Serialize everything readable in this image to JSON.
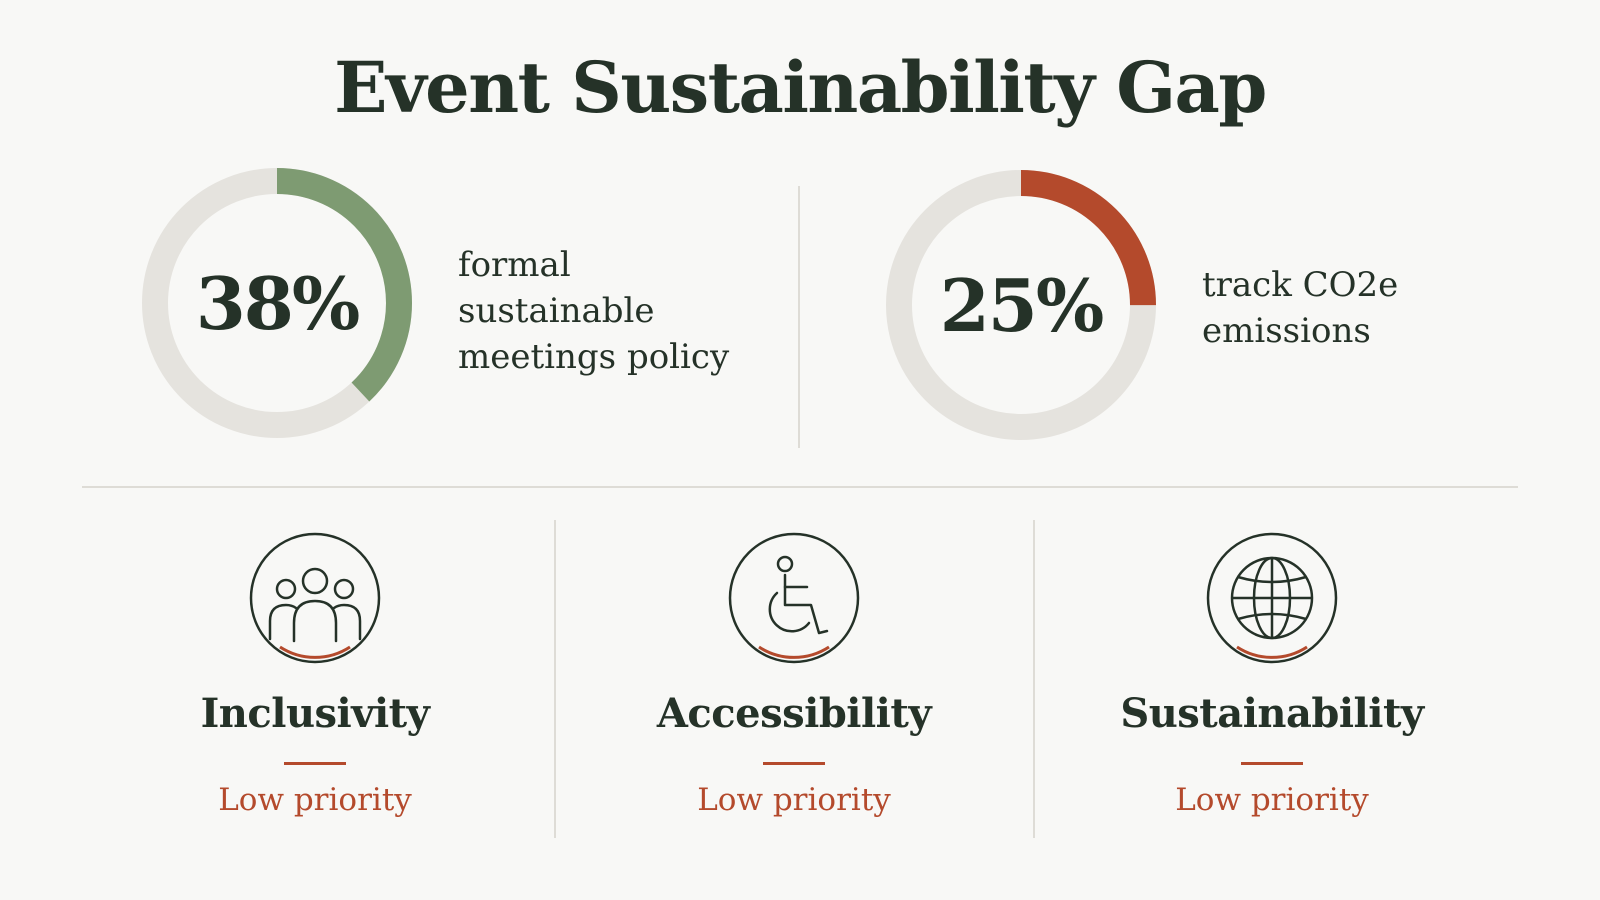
{
  "title": "Event Sustainability Gap",
  "colors": {
    "background": "#f8f8f6",
    "text": "#253228",
    "track": "#e5e3de",
    "green": "#7e9b72",
    "accent": "#b44a2c",
    "divider": "#dedcd6"
  },
  "stats": [
    {
      "value_text": "38%",
      "value": 0.38,
      "label": "formal sustainable meetings policy",
      "ring_color": "#7e9b72"
    },
    {
      "value_text": "25%",
      "value": 0.25,
      "label": "track CO2e emissions",
      "ring_color": "#b44a2c"
    }
  ],
  "priorities": [
    {
      "name": "Inclusivity",
      "status": "Low priority",
      "icon": "people-group-icon"
    },
    {
      "name": "Accessibility",
      "status": "Low priority",
      "icon": "wheelchair-icon"
    },
    {
      "name": "Sustainability",
      "status": "Low priority",
      "icon": "globe-icon"
    }
  ]
}
